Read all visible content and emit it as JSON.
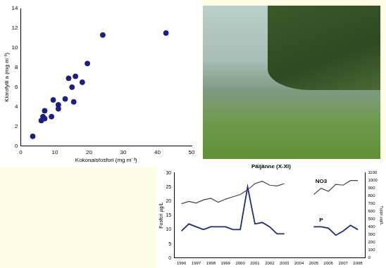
{
  "chart_data": [
    {
      "type": "scatter",
      "x_label": "Kokonaisfosfori (mg m⁻³)",
      "y_label": "Klorofylli a (mg m⁻³)",
      "x": [
        3.5,
        6,
        6.5,
        7,
        7,
        9,
        9.5,
        11,
        11,
        13,
        14,
        15,
        15.5,
        16,
        18,
        19.5,
        24,
        42.5
      ],
      "values": [
        1,
        2.6,
        3,
        2.8,
        3.6,
        3,
        4.7,
        4.2,
        3.8,
        4.8,
        6.9,
        6,
        4.5,
        7.1,
        6.5,
        8.4,
        11.3,
        11.5
      ],
      "color": "#1c1c8c",
      "marker": "circle",
      "xlim": [
        0,
        50
      ],
      "xticks": [
        0,
        10,
        20,
        30,
        40,
        50
      ],
      "ylim": [
        0,
        14
      ],
      "yticks": [
        0,
        2,
        4,
        6,
        8,
        10,
        12,
        14
      ],
      "grid": false
    },
    {
      "type": "line",
      "title": "Päijänne (X-XI)",
      "y_label": "Fosfori µg/L",
      "y2_label": "Typpi µg/L",
      "x": [
        1996,
        1996.5,
        1997,
        1997.5,
        1998,
        1998.5,
        1999,
        1999.5,
        2000,
        2000.5,
        2001,
        2001.5,
        2002,
        2002.5,
        2003,
        2004,
        2005,
        2005.5,
        2006,
        2006.5,
        2007,
        2007.5,
        2008
      ],
      "series": [
        {
          "name": "NO3",
          "color": "#444444",
          "axis": "y2",
          "values": [
            700,
            730,
            710,
            750,
            770,
            720,
            760,
            790,
            820,
            880,
            960,
            990,
            940,
            930,
            960,
            null,
            820,
            900,
            860,
            950,
            940,
            1000,
            1000
          ]
        },
        {
          "name": "P",
          "color": "#1c2a80",
          "axis": "y",
          "values": [
            9.5,
            12,
            11,
            10,
            11,
            11,
            11,
            10,
            10,
            25,
            12,
            12.5,
            11,
            8.5,
            8.5,
            null,
            11,
            11,
            10.5,
            8,
            9.5,
            11.5,
            10
          ]
        }
      ],
      "xlim": [
        1995.5,
        2008.5
      ],
      "xticks": [
        1996,
        1997,
        1998,
        1999,
        2000,
        2001,
        2002,
        2003,
        2004,
        2005,
        2006,
        2007,
        2008
      ],
      "ylim": [
        0,
        30
      ],
      "yticks": [
        0,
        5,
        10,
        15,
        20,
        25,
        30
      ],
      "y2lim": [
        0,
        1100
      ],
      "y2ticks": [
        0,
        100,
        200,
        300,
        400,
        500,
        600,
        700,
        800,
        900,
        1000,
        1100
      ],
      "grid": false
    }
  ]
}
